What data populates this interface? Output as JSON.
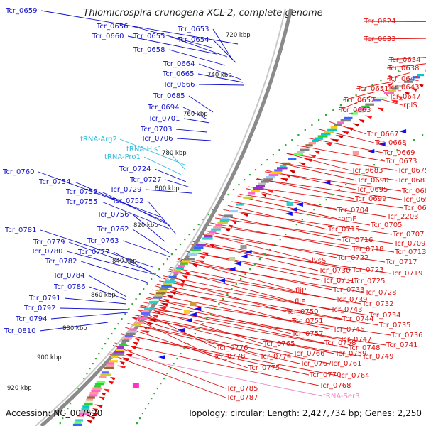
{
  "title": "Thiomicrospira crunogena XCL-2, complete genome",
  "footer": {
    "accession": "Accession: NC_007520",
    "summary": "Topology: circular; Length: 2,427,734 bp; Genes: 2,250"
  },
  "colors": {
    "ring": "#888888",
    "left_labels": "#1010cc",
    "rna_labels": "#33bbdd",
    "right_labels": "#dd1111",
    "pink_label": "#ee88cc",
    "scale_dots": "#33aa33"
  },
  "kbp_ticks": [
    "720 kbp",
    "740 kbp",
    "760 kbp",
    "780 kbp",
    "800 kbp",
    "820 kbp",
    "840 kbp",
    "860 kbp",
    "880 kbp",
    "900 kbp",
    "920 kbp"
  ],
  "left_labels": [
    "Tcr_0659",
    "Tcr_0656",
    "Tcr_0660",
    "Tcr_0655",
    "Tcr_0653",
    "Tcr_0654",
    "Tcr_0658",
    "Tcr_0664",
    "Tcr_0665",
    "Tcr_0666",
    "Tcr_0685",
    "Tcr_0694",
    "Tcr_0701",
    "Tcr_0703",
    "Tcr_0706",
    "tRNA-Arg2",
    "tRNA-His1",
    "tRNA-Pro1",
    "Tcr_0724",
    "Tcr_0727",
    "Tcr_0729",
    "Tcr_0760",
    "Tcr_0754",
    "Tcr_0753",
    "Tcr_0755",
    "Tcr_0752",
    "Tcr_0756",
    "Tcr_0762",
    "Tcr_0763",
    "Tcr_0781",
    "Tcr_0779",
    "Tcr_0780",
    "Tcr_0777",
    "Tcr_0782",
    "Tcr_0784",
    "Tcr_0786",
    "Tcr_0791",
    "Tcr_0792",
    "Tcr_0794",
    "Tcr_0810"
  ],
  "right_labels": [
    "Tcr_0624",
    "Tcr_0633",
    "Tcr_0634",
    "Tcr_0638",
    "Tcr_0641",
    "Tcr_0643",
    "Tcr_0651",
    "Tcr_0647",
    "Tcr_0652",
    "rplS",
    "Tcr_0663",
    "Tcr_0667",
    "Tcr_0668",
    "Tcr_0669",
    "Tcr_0673",
    "Tcr_0683",
    "Tcr_0675",
    "Tcr_0690",
    "Tcr_0681",
    "Tcr_0695",
    "Tcr_0686",
    "Tcr_0699",
    "Tcr_0692",
    "Tcr_0704",
    "Tcr_0696",
    "rpmF",
    "Tcr_2203",
    "Tcr_0705",
    "Tcr_0715",
    "Tcr_0707",
    "Tcr_0716",
    "Tcr_0709",
    "Tcr_0718",
    "Tcr_0713",
    "Tcr_0722",
    "lysS",
    "Tcr_0717",
    "Tcr_0723",
    "Tcr_0730",
    "Tcr_0719",
    "Tcr_0731",
    "Tcr_0725",
    "Tcr_0733",
    "Tcr_0728",
    "fliP",
    "Tcr_0739",
    "Tcr_0732",
    "fliF",
    "Tcr_0743",
    "Tcr_0750",
    "Tcr_0734",
    "Tcr_0744",
    "Tcr_0735",
    "Tcr_0751",
    "Tcr_0746",
    "Tcr_0736",
    "Tcr_0757",
    "Tcr_0747",
    "Tcr_0741",
    "Tcr_0765",
    "Tcr_0758",
    "Tcr_0748",
    "Tcr_0776",
    "Tcr_0766",
    "Tcr_0759",
    "Tcr_0749",
    "Tcr_0778",
    "Tcr_0774",
    "Tcr_0767",
    "Tcr_0761",
    "Tcr_0775",
    "Tcr_0770",
    "Tcr_0764",
    "Tcr_0768",
    "Tcr_0785",
    "tRNA-Ser3",
    "Tcr_0787"
  ]
}
